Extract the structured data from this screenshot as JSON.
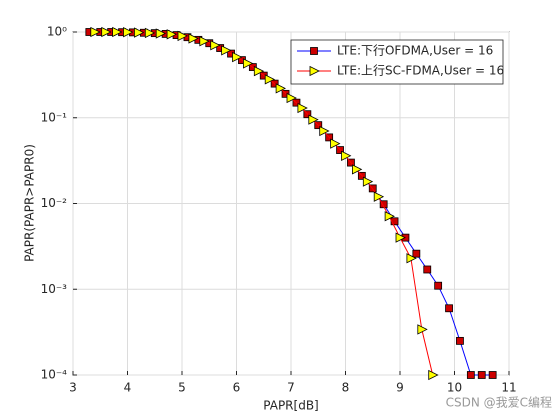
{
  "chart_data": {
    "type": "line",
    "xlabel": "PAPR[dB]",
    "ylabel": "PAPR(PAPR>PAPR0)",
    "xlim": [
      3,
      11
    ],
    "xticks": [
      3,
      4,
      5,
      6,
      7,
      8,
      9,
      10,
      11
    ],
    "ylim": [
      0.0001,
      1
    ],
    "log_y": true,
    "yticks": [
      {
        "value": 0.0001,
        "label": "10⁻⁴"
      },
      {
        "value": 0.001,
        "label": "10⁻³"
      },
      {
        "value": 0.01,
        "label": "10⁻²"
      },
      {
        "value": 0.1,
        "label": "10⁻¹"
      },
      {
        "value": 1,
        "label": "10⁰"
      }
    ],
    "grid": true,
    "legend": "upper right",
    "watermark": "CSDN @我爱C编程",
    "series": [
      {
        "name": "LTE:下行OFDMA,User = 16",
        "color": "#0000ff",
        "marker": "square",
        "marker_color": "#cc0000",
        "x": [
          3.3,
          3.5,
          3.7,
          3.9,
          4.1,
          4.3,
          4.5,
          4.7,
          4.9,
          5.1,
          5.3,
          5.5,
          5.7,
          5.9,
          6.1,
          6.3,
          6.5,
          6.7,
          6.9,
          7.1,
          7.3,
          7.5,
          7.7,
          7.9,
          8.1,
          8.3,
          8.5,
          8.7,
          8.9,
          9.1,
          9.3,
          9.5,
          9.7,
          9.9,
          10.1,
          10.3,
          10.5,
          10.7
        ],
        "values": [
          1,
          1,
          1,
          0.995,
          0.99,
          0.98,
          0.97,
          0.95,
          0.92,
          0.87,
          0.81,
          0.74,
          0.65,
          0.56,
          0.47,
          0.39,
          0.31,
          0.25,
          0.19,
          0.15,
          0.11,
          0.082,
          0.059,
          0.042,
          0.03,
          0.021,
          0.015,
          0.0098,
          0.0062,
          0.004,
          0.0026,
          0.0017,
          0.0011,
          0.0006,
          0.00025,
          0.0001,
          0.0001,
          0.0001
        ]
      },
      {
        "name": "LTE:上行SC-FDMA,User = 16",
        "color": "#ff0000",
        "marker": "triangle",
        "marker_color": "#ffff00",
        "x": [
          3.4,
          3.6,
          3.8,
          4.0,
          4.2,
          4.4,
          4.6,
          4.8,
          5.0,
          5.2,
          5.4,
          5.6,
          5.8,
          6.0,
          6.2,
          6.4,
          6.6,
          6.8,
          7.0,
          7.2,
          7.4,
          7.6,
          7.8,
          8.0,
          8.2,
          8.4,
          8.6,
          8.8,
          9.0,
          9.2,
          9.4,
          9.6
        ],
        "values": [
          1,
          1,
          1,
          0.995,
          0.985,
          0.975,
          0.96,
          0.94,
          0.9,
          0.84,
          0.78,
          0.7,
          0.61,
          0.51,
          0.43,
          0.35,
          0.28,
          0.22,
          0.17,
          0.13,
          0.095,
          0.07,
          0.05,
          0.036,
          0.025,
          0.018,
          0.012,
          0.0071,
          0.004,
          0.0023,
          0.00034,
          0.0001
        ]
      }
    ]
  }
}
